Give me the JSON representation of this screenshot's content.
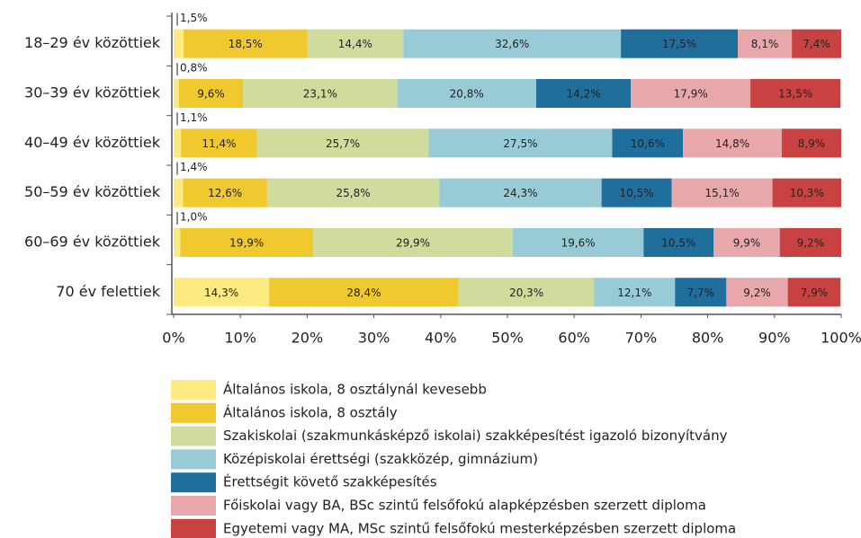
{
  "chart_data": {
    "type": "stacked_barh",
    "categories": [
      "18–29 év közöttiek",
      "30–39 év közöttiek",
      "40–49 év közöttiek",
      "50–59 év közöttiek",
      "60–69 év közöttiek",
      "70 év felettiek"
    ],
    "series": [
      {
        "name": "Általános iskola, 8 osztálynál kevesebb",
        "color": "#fdeb82",
        "values": [
          1.5,
          0.8,
          1.1,
          1.4,
          1.0,
          14.3
        ],
        "value_labels": [
          "1,5%",
          "0,8%",
          "1,1%",
          "1,4%",
          "1,0%",
          "14,3%"
        ]
      },
      {
        "name": "Általános iskola, 8 osztály",
        "color": "#f0c92e",
        "values": [
          18.5,
          9.6,
          11.4,
          12.6,
          19.9,
          28.4
        ],
        "value_labels": [
          "18,5%",
          "9,6%",
          "11,4%",
          "12,6%",
          "19,9%",
          "28,4%"
        ]
      },
      {
        "name": "Szakiskolai (szakmunkásképző iskolai) szakképesítést igazoló bizonyítvány",
        "color": "#cfdc9c",
        "values": [
          14.4,
          23.1,
          25.7,
          25.8,
          29.9,
          20.3
        ],
        "value_labels": [
          "14,4%",
          "23,1%",
          "25,7%",
          "25,8%",
          "29,9%",
          "20,3%"
        ]
      },
      {
        "name": "Középiskolai érettségi (szakközép, gimnázium)",
        "color": "#98cbd6",
        "values": [
          32.6,
          20.8,
          27.5,
          24.3,
          19.6,
          12.1
        ],
        "value_labels": [
          "32,6%",
          "20,8%",
          "27,5%",
          "24,3%",
          "19,6%",
          "12,1%"
        ]
      },
      {
        "name": "Érettségit követő szakképesítés",
        "color": "#1f6e9c",
        "values": [
          17.5,
          14.2,
          10.6,
          10.5,
          10.5,
          7.7
        ],
        "value_labels": [
          "17,5%",
          "14,2%",
          "10,6%",
          "10,5%",
          "10,5%",
          "7,7%"
        ]
      },
      {
        "name": "Főiskolai vagy BA, BSc szintű felsőfokú alapképzésben szerzett diploma",
        "color": "#e8a8ab",
        "values": [
          8.1,
          17.9,
          14.8,
          15.1,
          9.9,
          9.2
        ],
        "value_labels": [
          "8,1%",
          "17,9%",
          "14,8%",
          "15,1%",
          "9,9%",
          "9,2%"
        ]
      },
      {
        "name": "Egyetemi vagy MA, MSc szintű felsőfokú mesterképzésben szerzett diploma",
        "color": "#c94242",
        "values": [
          7.4,
          13.5,
          8.9,
          10.3,
          9.2,
          7.9
        ],
        "value_labels": [
          "7,4%",
          "13,5%",
          "8,9%",
          "10,3%",
          "9,2%",
          "7,9%"
        ]
      }
    ],
    "xlim": [
      0,
      100
    ],
    "xticks": [
      {
        "value": 0,
        "label": "0%"
      },
      {
        "value": 10,
        "label": "10%"
      },
      {
        "value": 20,
        "label": "20%"
      },
      {
        "value": 30,
        "label": "30%"
      },
      {
        "value": 40,
        "label": "40%"
      },
      {
        "value": 50,
        "label": "50%"
      },
      {
        "value": 60,
        "label": "60%"
      },
      {
        "value": 70,
        "label": "70%"
      },
      {
        "value": 80,
        "label": "80%"
      },
      {
        "value": 90,
        "label": "90%"
      },
      {
        "value": 100,
        "label": "100%"
      }
    ],
    "legend": "bottom"
  }
}
